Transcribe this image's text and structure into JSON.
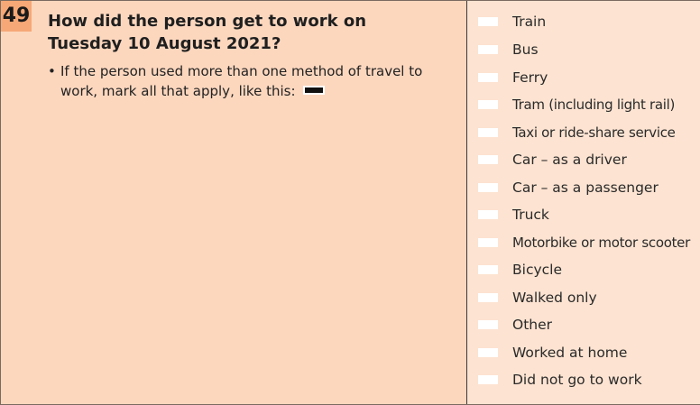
{
  "question": {
    "number": "49",
    "text_line1": "How did the person get to work on",
    "text_line2": "Tuesday 10 August 2021?",
    "note_line1": "If the person used more than one method of travel to",
    "note_line2": "work, mark all that apply, like this:",
    "bullet": "•"
  },
  "options": [
    "Train",
    "Bus",
    "Ferry",
    "Tram (including light rail)",
    "Taxi or ride-share service",
    "Car – as a driver",
    "Car – as a passenger",
    "Truck",
    "Motorbike or motor scooter",
    "Bicycle",
    "Walked only",
    "Other",
    "Worked at home",
    "Did not go to work"
  ],
  "colors": {
    "left_panel": "#fcd7be",
    "right_panel": "#fde3d1",
    "number_badge": "#f6a876",
    "checkbox": "#ffffff"
  }
}
